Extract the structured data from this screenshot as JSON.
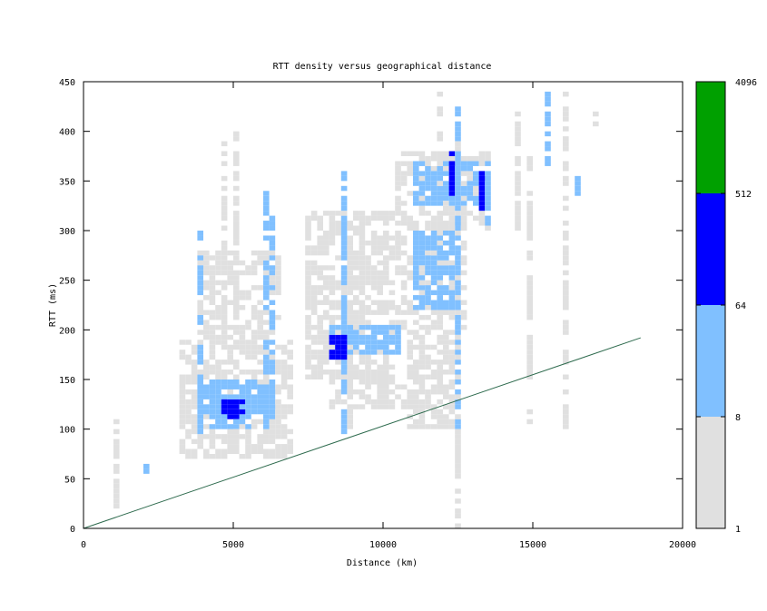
{
  "chart_data": {
    "type": "heatmap",
    "title": "RTT density versus geographical distance",
    "xlabel": "Distance (km)",
    "ylabel": "RTT (ms)",
    "xlim": [
      0,
      20000
    ],
    "ylim": [
      0,
      450
    ],
    "xticks": [
      "0",
      "5000",
      "10000",
      "15000",
      "20000"
    ],
    "yticks": [
      "0",
      "50",
      "100",
      "150",
      "200",
      "250",
      "300",
      "350",
      "400",
      "450"
    ],
    "colorbar": {
      "scale": "log",
      "ticks": [
        "1",
        "8",
        "64",
        "512",
        "4096"
      ],
      "bands": [
        {
          "from": 1,
          "to": 8,
          "color": "#e0e0e0"
        },
        {
          "from": 8,
          "to": 64,
          "color": "#80c0ff"
        },
        {
          "from": 64,
          "to": 512,
          "color": "#0000ff"
        },
        {
          "from": 512,
          "to": 4096,
          "color": "#00a000"
        }
      ]
    },
    "reference_line": {
      "color": "#2e6b4e",
      "points": [
        [
          0,
          0
        ],
        [
          18600,
          192
        ]
      ]
    },
    "regions": [
      {
        "x": [
          3200,
          7000
        ],
        "y": [
          70,
          190
        ],
        "level": 1
      },
      {
        "x": [
          3800,
          6500
        ],
        "y": [
          190,
          280
        ],
        "level": 1
      },
      {
        "x": [
          7500,
          10500
        ],
        "y": [
          150,
          320
        ],
        "level": 1
      },
      {
        "x": [
          8200,
          11000
        ],
        "y": [
          120,
          150
        ],
        "level": 1
      },
      {
        "x": [
          10500,
          12800
        ],
        "y": [
          200,
          380
        ],
        "level": 1
      },
      {
        "x": [
          12000,
          13500
        ],
        "y": [
          300,
          380
        ],
        "level": 1
      },
      {
        "x": [
          10800,
          12500
        ],
        "y": [
          100,
          200
        ],
        "level": 1
      },
      {
        "x": [
          3900,
          6400
        ],
        "y": [
          110,
          150
        ],
        "level": 2
      },
      {
        "x": [
          4200,
          5600
        ],
        "y": [
          100,
          125
        ],
        "level": 2
      },
      {
        "x": [
          8300,
          10600
        ],
        "y": [
          175,
          205
        ],
        "level": 2
      },
      {
        "x": [
          11000,
          12400
        ],
        "y": [
          220,
          300
        ],
        "level": 2
      },
      {
        "x": [
          11000,
          13200
        ],
        "y": [
          325,
          370
        ],
        "level": 2
      },
      {
        "x": [
          4600,
          5300
        ],
        "y": [
          112,
          130
        ],
        "level": 3
      },
      {
        "x": [
          8300,
          8900
        ],
        "y": [
          170,
          195
        ],
        "level": 3
      },
      {
        "x": [
          12300,
          12450
        ],
        "y": [
          335,
          378
        ],
        "level": 3
      },
      {
        "x": [
          13300,
          13450
        ],
        "y": [
          322,
          358
        ],
        "level": 3
      }
    ],
    "columns": [
      {
        "x": 1000,
        "y": [
          10,
          120
        ],
        "level": 1
      },
      {
        "x": 2000,
        "y": [
          55,
          62
        ],
        "level": 2
      },
      {
        "x": 3200,
        "y": [
          80,
          160
        ],
        "level": 1
      },
      {
        "x": 3900,
        "y": [
          90,
          300
        ],
        "level": 2
      },
      {
        "x": 4700,
        "y": [
          180,
          400
        ],
        "level": 1
      },
      {
        "x": 5100,
        "y": [
          95,
          420
        ],
        "level": 1
      },
      {
        "x": 6000,
        "y": [
          100,
          340
        ],
        "level": 2
      },
      {
        "x": 6200,
        "y": [
          120,
          320
        ],
        "level": 2
      },
      {
        "x": 8700,
        "y": [
          90,
          360
        ],
        "level": 2
      },
      {
        "x": 8900,
        "y": [
          100,
          300
        ],
        "level": 1
      },
      {
        "x": 9200,
        "y": [
          160,
          330
        ],
        "level": 1
      },
      {
        "x": 11200,
        "y": [
          100,
          300
        ],
        "level": 1
      },
      {
        "x": 11900,
        "y": [
          100,
          440
        ],
        "level": 1
      },
      {
        "x": 12400,
        "y": [
          100,
          430
        ],
        "level": 2
      },
      {
        "x": 12500,
        "y": [
          0,
          400
        ],
        "level": 1
      },
      {
        "x": 13500,
        "y": [
          300,
          370
        ],
        "level": 2
      },
      {
        "x": 14400,
        "y": [
          300,
          430
        ],
        "level": 1
      },
      {
        "x": 14900,
        "y": [
          100,
          380
        ],
        "level": 1
      },
      {
        "x": 15500,
        "y": [
          360,
          440
        ],
        "level": 2
      },
      {
        "x": 16000,
        "y": [
          100,
          440
        ],
        "level": 1
      },
      {
        "x": 16500,
        "y": [
          330,
          360
        ],
        "level": 2
      },
      {
        "x": 17100,
        "y": [
          400,
          420
        ],
        "level": 1
      }
    ]
  }
}
